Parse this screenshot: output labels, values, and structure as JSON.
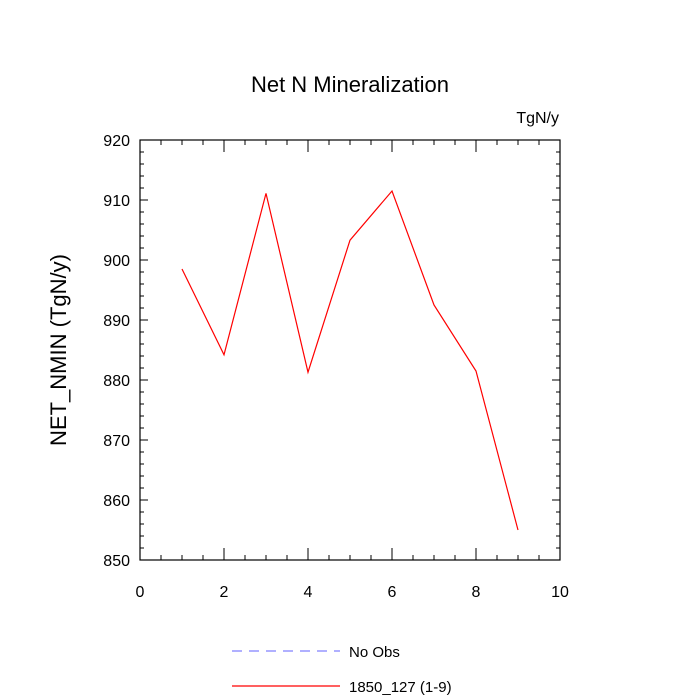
{
  "chart_data": {
    "type": "line",
    "title": "Net N Mineralization",
    "units_label": "TgN/y",
    "xlabel": "",
    "ylabel": "NET_NMIN  (TgN/y)",
    "xlim": [
      0,
      10
    ],
    "ylim": [
      850,
      920
    ],
    "x_ticks": [
      0,
      2,
      4,
      6,
      8,
      10
    ],
    "y_ticks": [
      850,
      860,
      870,
      880,
      890,
      900,
      910,
      920
    ],
    "grid": false,
    "legend_position": "bottom-center",
    "series": [
      {
        "name": "No Obs",
        "color": "#8080ff",
        "style": "dashed",
        "x": [],
        "y": []
      },
      {
        "name": "1850_127 (1-9)",
        "color": "#ff0000",
        "style": "solid",
        "x": [
          1,
          2,
          3,
          4,
          5,
          6,
          7,
          8,
          9
        ],
        "y": [
          898.5,
          884.2,
          911.1,
          881.3,
          903.3,
          911.5,
          892.5,
          881.5,
          855.0
        ]
      }
    ]
  }
}
